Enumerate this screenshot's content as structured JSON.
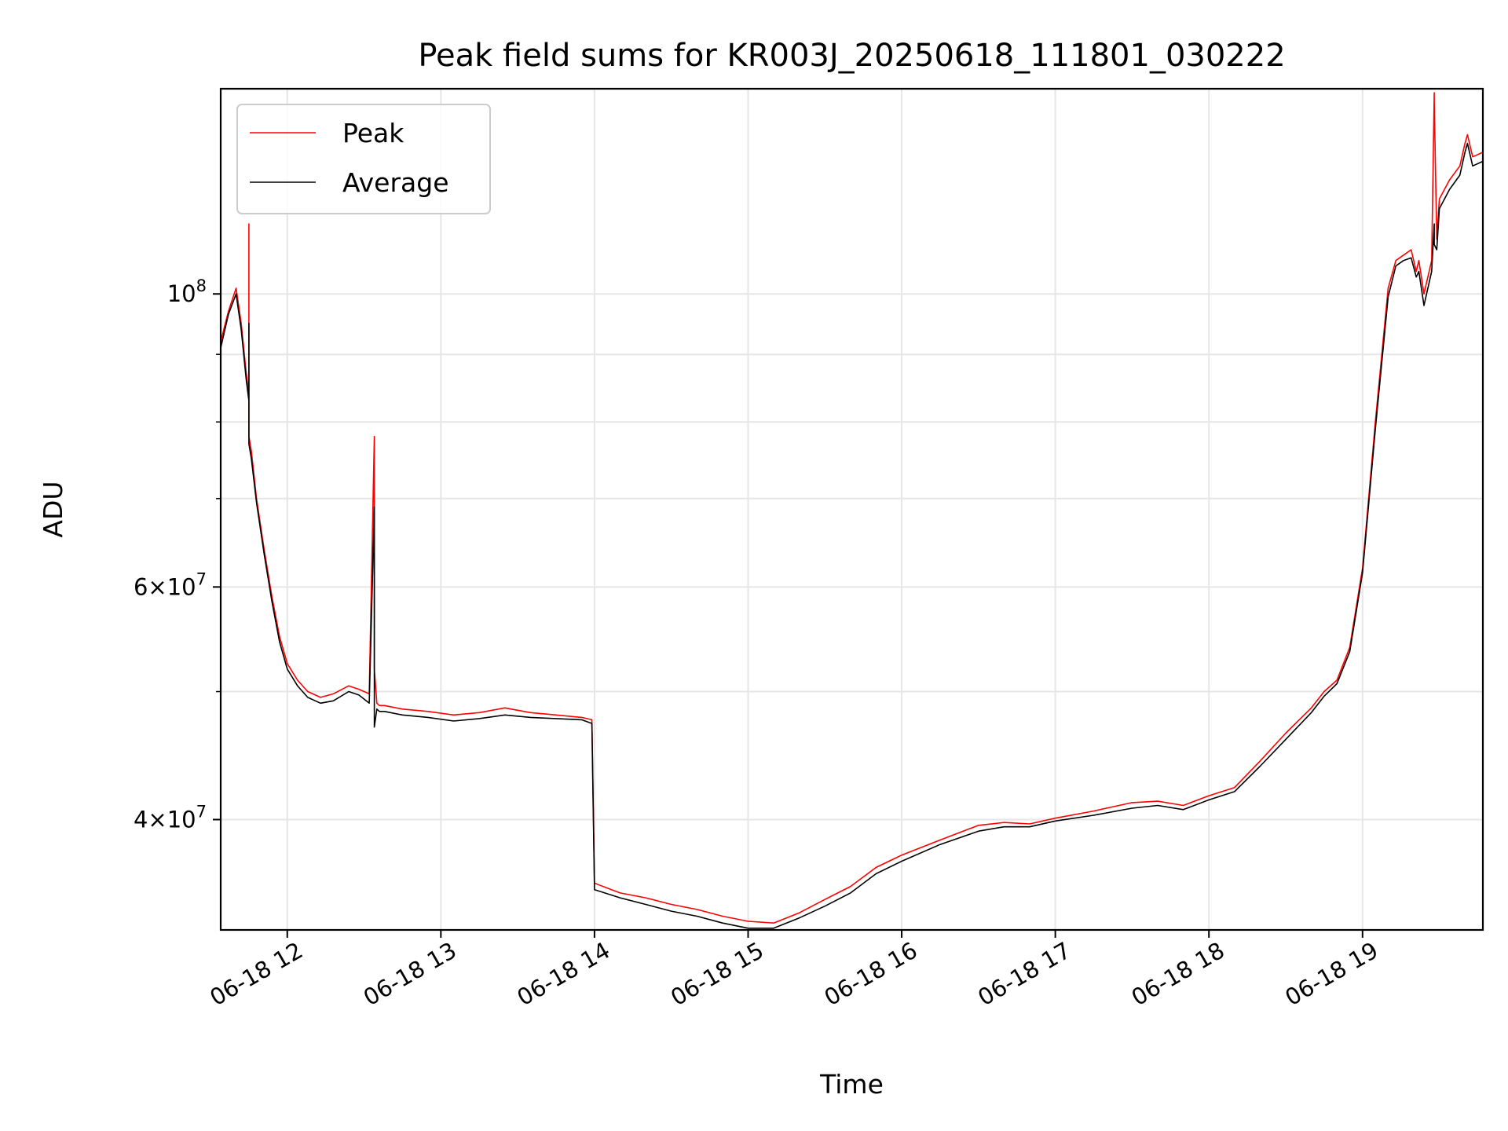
{
  "chart_data": {
    "type": "line",
    "title": "Peak field sums for KR003J_20250618_111801_030222",
    "xlabel": "Time",
    "ylabel": "ADU",
    "xlim": [
      "2025-06-18 11:34",
      "2025-06-18 19:47"
    ],
    "ylim": [
      33000000,
      143000000
    ],
    "yscale": "log",
    "grid": true,
    "legend_position": "upper left",
    "x_ticks": [
      {
        "value": "2025-06-18 12:00",
        "label": "06-18 12"
      },
      {
        "value": "2025-06-18 13:00",
        "label": "06-18 13"
      },
      {
        "value": "2025-06-18 14:00",
        "label": "06-18 14"
      },
      {
        "value": "2025-06-18 15:00",
        "label": "06-18 15"
      },
      {
        "value": "2025-06-18 16:00",
        "label": "06-18 16"
      },
      {
        "value": "2025-06-18 17:00",
        "label": "06-18 17"
      },
      {
        "value": "2025-06-18 18:00",
        "label": "06-18 18"
      },
      {
        "value": "2025-06-18 19:00",
        "label": "06-18 19"
      }
    ],
    "y_major_ticks": [
      {
        "value": 40000000,
        "mantissa": "4",
        "exponent": "7"
      },
      {
        "value": 60000000,
        "mantissa": "6",
        "exponent": "7"
      },
      {
        "value": 100000000,
        "mantissa": "",
        "exponent": "8"
      }
    ],
    "y_minor_ticks": [
      50000000,
      70000000,
      80000000,
      90000000
    ],
    "series": [
      {
        "name": "Peak",
        "color": "#ff0000",
        "x": [
          "2025-06-18 11:34",
          "2025-06-18 11:37",
          "2025-06-18 11:40",
          "2025-06-18 11:42",
          "2025-06-18 11:44",
          "2025-06-18 11:45",
          "2025-06-18 11:45",
          "2025-06-18 11:45",
          "2025-06-18 11:46",
          "2025-06-18 11:48",
          "2025-06-18 11:51",
          "2025-06-18 11:54",
          "2025-06-18 11:57",
          "2025-06-18 12:00",
          "2025-06-18 12:04",
          "2025-06-18 12:08",
          "2025-06-18 12:13",
          "2025-06-18 12:18",
          "2025-06-18 12:24",
          "2025-06-18 12:28",
          "2025-06-18 12:32",
          "2025-06-18 12:34",
          "2025-06-18 12:34",
          "2025-06-18 12:35",
          "2025-06-18 12:36",
          "2025-06-18 12:38",
          "2025-06-18 12:45",
          "2025-06-18 12:55",
          "2025-06-18 13:05",
          "2025-06-18 13:15",
          "2025-06-18 13:25",
          "2025-06-18 13:35",
          "2025-06-18 13:45",
          "2025-06-18 13:55",
          "2025-06-18 13:59",
          "2025-06-18 14:00",
          "2025-06-18 14:10",
          "2025-06-18 14:20",
          "2025-06-18 14:30",
          "2025-06-18 14:40",
          "2025-06-18 14:50",
          "2025-06-18 15:00",
          "2025-06-18 15:10",
          "2025-06-18 15:20",
          "2025-06-18 15:30",
          "2025-06-18 15:40",
          "2025-06-18 15:50",
          "2025-06-18 16:00",
          "2025-06-18 16:15",
          "2025-06-18 16:30",
          "2025-06-18 16:40",
          "2025-06-18 16:50",
          "2025-06-18 17:00",
          "2025-06-18 17:15",
          "2025-06-18 17:30",
          "2025-06-18 17:40",
          "2025-06-18 17:50",
          "2025-06-18 18:00",
          "2025-06-18 18:10",
          "2025-06-18 18:20",
          "2025-06-18 18:30",
          "2025-06-18 18:40",
          "2025-06-18 18:45",
          "2025-06-18 18:50",
          "2025-06-18 18:55",
          "2025-06-18 19:00",
          "2025-06-18 19:05",
          "2025-06-18 19:10",
          "2025-06-18 19:13",
          "2025-06-18 19:16",
          "2025-06-18 19:19",
          "2025-06-18 19:21",
          "2025-06-18 19:22",
          "2025-06-18 19:24",
          "2025-06-18 19:27",
          "2025-06-18 19:28",
          "2025-06-18 19:28",
          "2025-06-18 19:29",
          "2025-06-18 19:30",
          "2025-06-18 19:34",
          "2025-06-18 19:38",
          "2025-06-18 19:40",
          "2025-06-18 19:41",
          "2025-06-18 19:43",
          "2025-06-18 19:47"
        ],
        "values": [
          92000000,
          97000000,
          101000000,
          95000000,
          87000000,
          84000000,
          113000000,
          78000000,
          76000000,
          70000000,
          64000000,
          59000000,
          55000000,
          52500000,
          51000000,
          50000000,
          49500000,
          49800000,
          50500000,
          50200000,
          49800000,
          78000000,
          52000000,
          49000000,
          48800000,
          48800000,
          48500000,
          48300000,
          48000000,
          48200000,
          48600000,
          48200000,
          48000000,
          47800000,
          47600000,
          35800000,
          35200000,
          34900000,
          34500000,
          34200000,
          33800000,
          33500000,
          33400000,
          34000000,
          34800000,
          35600000,
          36800000,
          37600000,
          38600000,
          39600000,
          39800000,
          39700000,
          40100000,
          40600000,
          41200000,
          41300000,
          41000000,
          41700000,
          42300000,
          44300000,
          46500000,
          48600000,
          50000000,
          51000000,
          54000000,
          62000000,
          80000000,
          101000000,
          106000000,
          107000000,
          108000000,
          104000000,
          106000000,
          100000000,
          106000000,
          142000000,
          140000000,
          110000000,
          118000000,
          122000000,
          125000000,
          130000000,
          132000000,
          127000000,
          128000000
        ]
      },
      {
        "name": "Average",
        "color": "#000000",
        "x": [
          "2025-06-18 11:34",
          "2025-06-18 11:37",
          "2025-06-18 11:40",
          "2025-06-18 11:42",
          "2025-06-18 11:44",
          "2025-06-18 11:45",
          "2025-06-18 11:45",
          "2025-06-18 11:45",
          "2025-06-18 11:46",
          "2025-06-18 11:48",
          "2025-06-18 11:51",
          "2025-06-18 11:54",
          "2025-06-18 11:57",
          "2025-06-18 12:00",
          "2025-06-18 12:04",
          "2025-06-18 12:08",
          "2025-06-18 12:13",
          "2025-06-18 12:18",
          "2025-06-18 12:24",
          "2025-06-18 12:28",
          "2025-06-18 12:32",
          "2025-06-18 12:34",
          "2025-06-18 12:34",
          "2025-06-18 12:35",
          "2025-06-18 12:36",
          "2025-06-18 12:38",
          "2025-06-18 12:45",
          "2025-06-18 12:55",
          "2025-06-18 13:05",
          "2025-06-18 13:15",
          "2025-06-18 13:25",
          "2025-06-18 13:35",
          "2025-06-18 13:45",
          "2025-06-18 13:55",
          "2025-06-18 13:59",
          "2025-06-18 14:00",
          "2025-06-18 14:10",
          "2025-06-18 14:20",
          "2025-06-18 14:30",
          "2025-06-18 14:40",
          "2025-06-18 14:50",
          "2025-06-18 15:00",
          "2025-06-18 15:10",
          "2025-06-18 15:20",
          "2025-06-18 15:30",
          "2025-06-18 15:40",
          "2025-06-18 15:50",
          "2025-06-18 16:00",
          "2025-06-18 16:15",
          "2025-06-18 16:30",
          "2025-06-18 16:40",
          "2025-06-18 16:50",
          "2025-06-18 17:00",
          "2025-06-18 17:15",
          "2025-06-18 17:30",
          "2025-06-18 17:40",
          "2025-06-18 17:50",
          "2025-06-18 18:00",
          "2025-06-18 18:10",
          "2025-06-18 18:20",
          "2025-06-18 18:30",
          "2025-06-18 18:40",
          "2025-06-18 18:45",
          "2025-06-18 18:50",
          "2025-06-18 18:55",
          "2025-06-18 19:00",
          "2025-06-18 19:05",
          "2025-06-18 19:10",
          "2025-06-18 19:13",
          "2025-06-18 19:16",
          "2025-06-18 19:19",
          "2025-06-18 19:21",
          "2025-06-18 19:22",
          "2025-06-18 19:24",
          "2025-06-18 19:27",
          "2025-06-18 19:28",
          "2025-06-18 19:28",
          "2025-06-18 19:29",
          "2025-06-18 19:30",
          "2025-06-18 19:34",
          "2025-06-18 19:38",
          "2025-06-18 19:40",
          "2025-06-18 19:41",
          "2025-06-18 19:43",
          "2025-06-18 19:47"
        ],
        "values": [
          91000000,
          96500000,
          100000000,
          94000000,
          86000000,
          83000000,
          95000000,
          77000000,
          75000000,
          69500000,
          63500000,
          58500000,
          54500000,
          52000000,
          50500000,
          49500000,
          49000000,
          49200000,
          50000000,
          49700000,
          49000000,
          69000000,
          47000000,
          48500000,
          48300000,
          48300000,
          48000000,
          47800000,
          47500000,
          47700000,
          48000000,
          47800000,
          47700000,
          47600000,
          47300000,
          35400000,
          34900000,
          34500000,
          34100000,
          33800000,
          33400000,
          33100000,
          33100000,
          33700000,
          34400000,
          35200000,
          36400000,
          37200000,
          38300000,
          39200000,
          39500000,
          39500000,
          39900000,
          40300000,
          40800000,
          41000000,
          40700000,
          41400000,
          42000000,
          43900000,
          46000000,
          48200000,
          49600000,
          50700000,
          53600000,
          61500000,
          79000000,
          99500000,
          105000000,
          106000000,
          106500000,
          103000000,
          104000000,
          98000000,
          104000000,
          113000000,
          109000000,
          108000000,
          116000000,
          120000000,
          123000000,
          128000000,
          130000000,
          125000000,
          126000000
        ]
      }
    ]
  }
}
